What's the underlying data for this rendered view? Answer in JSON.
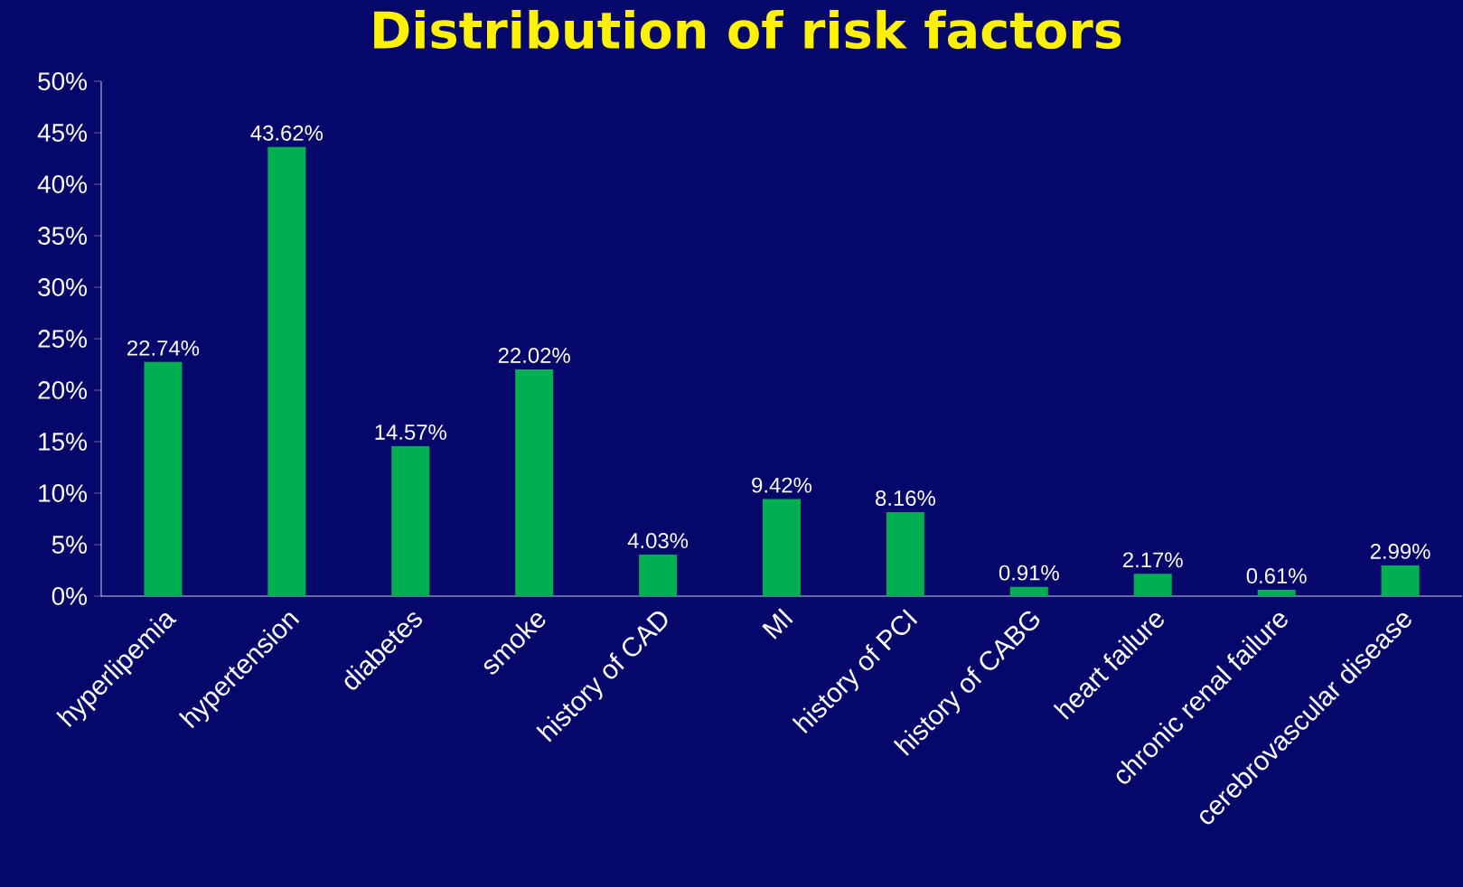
{
  "chart_data": {
    "type": "bar",
    "title": "Distribution of risk factors",
    "categories": [
      "hyperlipemia",
      "hypertension",
      "diabetes",
      "smoke",
      "history of CAD",
      "MI",
      "history of PCI",
      "history of CABG",
      "heart failure",
      "chronic renal failure",
      "cerebrovascular disease"
    ],
    "values": [
      22.74,
      43.62,
      14.57,
      22.02,
      4.03,
      9.42,
      8.16,
      0.91,
      2.17,
      0.61,
      2.99
    ],
    "value_labels": [
      "22.74%",
      "43.62%",
      "14.57%",
      "22.02%",
      "4.03%",
      "9.42%",
      "8.16%",
      "0.91%",
      "2.17%",
      "0.61%",
      "2.99%"
    ],
    "color": "#00b050",
    "ylim": [
      0,
      50
    ],
    "yticks": [
      {
        "value": 0,
        "label": "0%"
      },
      {
        "value": 5,
        "label": "5%"
      },
      {
        "value": 10,
        "label": "10%"
      },
      {
        "value": 15,
        "label": "15%"
      },
      {
        "value": 20,
        "label": "20%"
      },
      {
        "value": 25,
        "label": "25%"
      },
      {
        "value": 30,
        "label": "30%"
      },
      {
        "value": 35,
        "label": "35%"
      },
      {
        "value": 40,
        "label": "40%"
      },
      {
        "value": 45,
        "label": "45%"
      },
      {
        "value": 50,
        "label": "50%"
      }
    ]
  }
}
